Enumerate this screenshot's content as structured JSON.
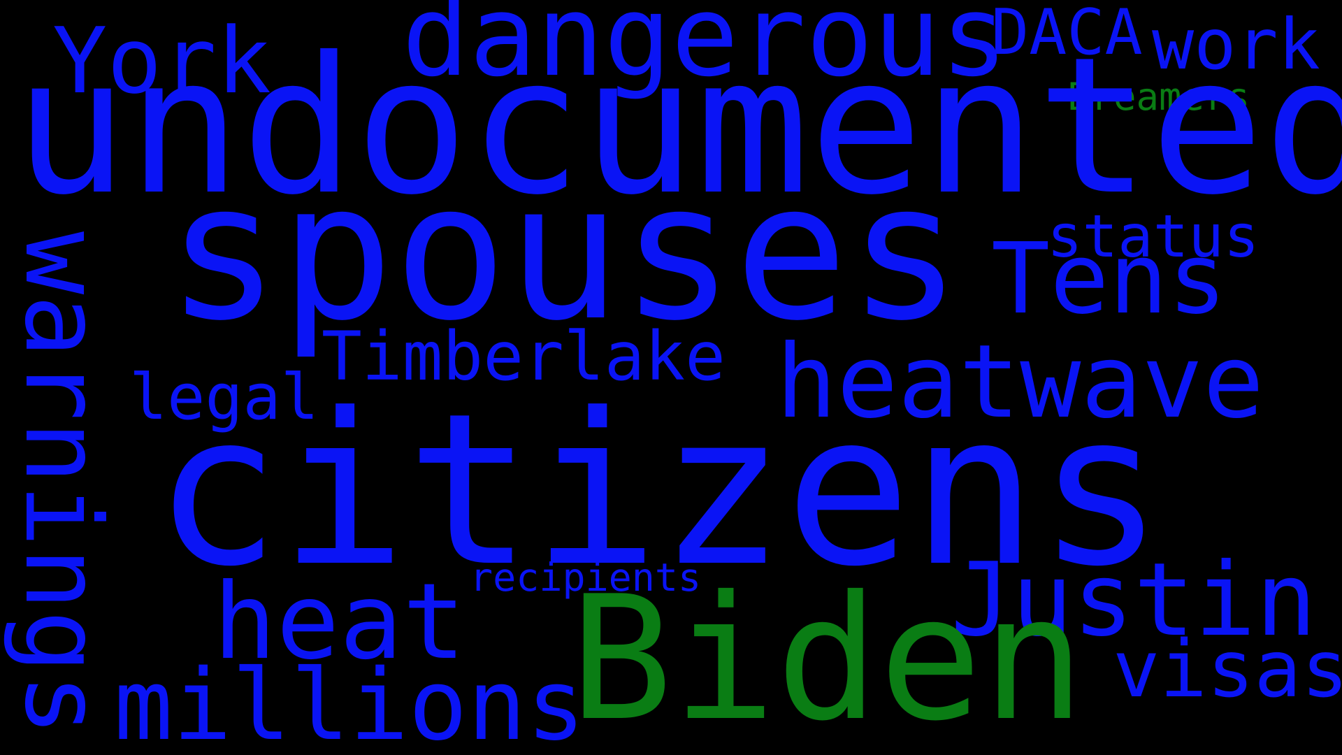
{
  "background": "#000000",
  "colors": {
    "blue": "#0a14f5",
    "green": "#0a7d14"
  },
  "words": {
    "york": {
      "text": "York",
      "color": "#0a14f5"
    },
    "dangerous": {
      "text": "dangerous",
      "color": "#0a14f5"
    },
    "daca": {
      "text": "DACA",
      "color": "#0a14f5"
    },
    "work": {
      "text": "work",
      "color": "#0a14f5"
    },
    "dreamers": {
      "text": "Dreamers",
      "color": "#0a7d14"
    },
    "undocumented": {
      "text": "undocumented",
      "color": "#0a14f5"
    },
    "spouses": {
      "text": "spouses",
      "color": "#0a14f5"
    },
    "status": {
      "text": "status",
      "color": "#0a14f5"
    },
    "tens": {
      "text": "Tens",
      "color": "#0a14f5"
    },
    "warnings": {
      "text": "warnings",
      "color": "#0a14f5"
    },
    "timberlake": {
      "text": "Timberlake",
      "color": "#0a14f5"
    },
    "heatwave": {
      "text": "heatwave",
      "color": "#0a14f5"
    },
    "legal": {
      "text": "legal",
      "color": "#0a14f5"
    },
    "citizens": {
      "text": "citizens",
      "color": "#0a14f5"
    },
    "recipients": {
      "text": "recipients",
      "color": "#0a14f5"
    },
    "justin": {
      "text": "Justin",
      "color": "#0a14f5"
    },
    "heat": {
      "text": "heat",
      "color": "#0a14f5"
    },
    "biden": {
      "text": "Biden",
      "color": "#0a7d14"
    },
    "visas": {
      "text": "visas",
      "color": "#0a14f5"
    },
    "millions": {
      "text": "millions",
      "color": "#0a14f5"
    }
  }
}
